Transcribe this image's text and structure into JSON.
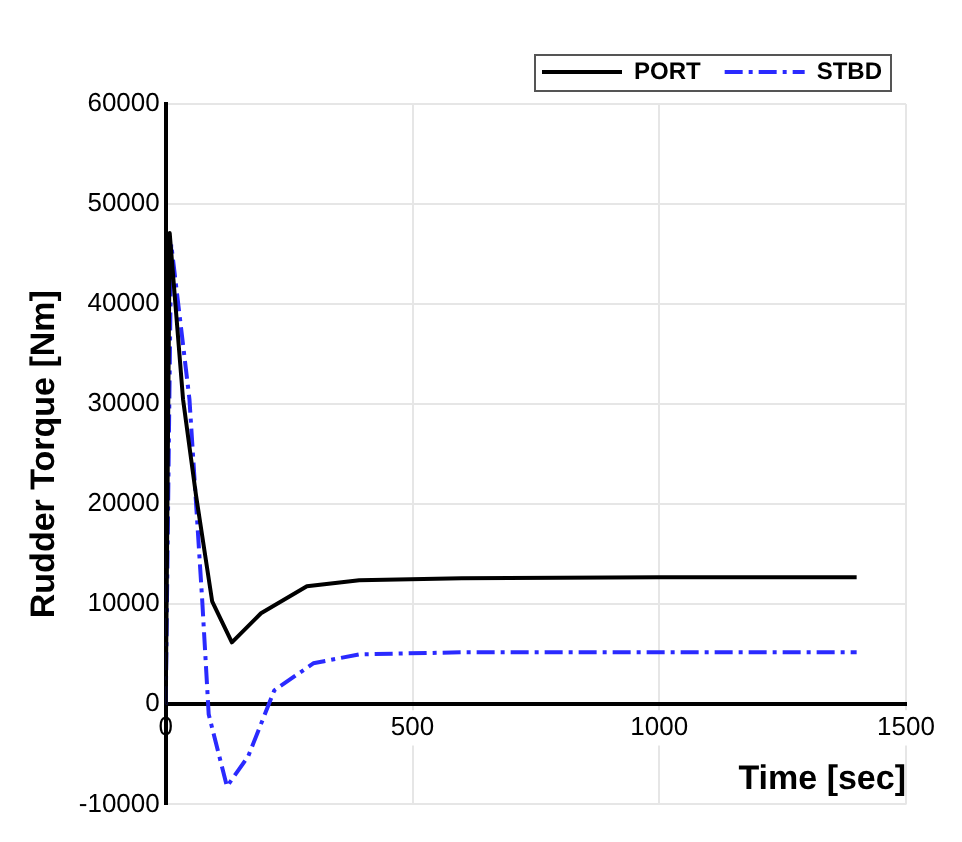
{
  "chart_data": {
    "type": "line",
    "xlabel": "Time [sec]",
    "ylabel": "Rudder Torque [Nm]",
    "xlim": [
      0,
      1500
    ],
    "xticks": [
      0,
      500,
      1000,
      1500
    ],
    "ylim": [
      -10000,
      60000
    ],
    "yticks": [
      -10000,
      0,
      10000,
      20000,
      30000,
      40000,
      50000,
      60000
    ],
    "grid": true,
    "legend": "top right",
    "marker": "none",
    "series": [
      {
        "name": "PORT",
        "color": "#000000",
        "line_style": "solid",
        "x": [
          0,
          8,
          35,
          61,
          94,
          134,
          193,
          286,
          392,
          600,
          1000,
          1400
        ],
        "values": [
          0,
          47100,
          30500,
          21000,
          10300,
          6200,
          9100,
          11800,
          12400,
          12600,
          12700,
          12700
        ]
      },
      {
        "name": "STBD",
        "color": "#2a2aff",
        "line_style": "dashdot",
        "x": [
          0,
          11,
          48,
          74,
          87,
          124,
          167,
          220,
          299,
          392,
          600,
          1000,
          1400
        ],
        "values": [
          0,
          46000,
          30500,
          10300,
          -1000,
          -8200,
          -5200,
          1400,
          4100,
          5000,
          5200,
          5200,
          5200
        ]
      }
    ]
  }
}
